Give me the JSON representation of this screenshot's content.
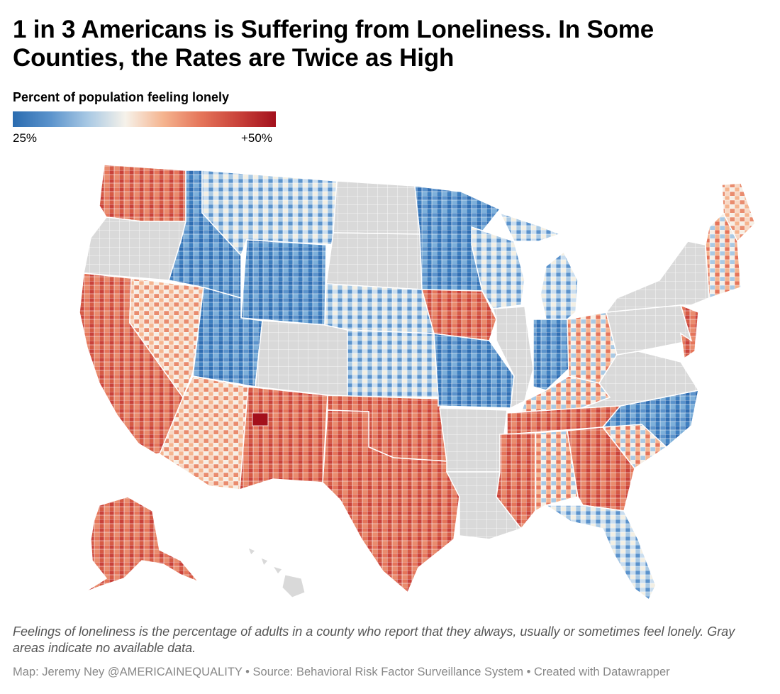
{
  "title": "1 in 3 Americans is Suffering from Loneliness. In Some Counties, the Rates are Twice as High",
  "legend": {
    "title": "Percent of population feeling lonely",
    "min_label": "25%",
    "max_label": "+50%",
    "colors": [
      "#2b6cb0",
      "#5b93cc",
      "#a9c9e4",
      "#f6f2ea",
      "#f5b48f",
      "#e5755a",
      "#c9423a",
      "#a3101c"
    ]
  },
  "no_data_color": "#d9d9d9",
  "note": "Feelings of loneliness is the percentage of adults in a county who report that they always, usually or sometimes feel lonely. Gray areas indicate no available data.",
  "credits": "Map: Jeremy Ney @AMERICAINEQUALITY • Source: Behavioral Risk Factor Surveillance System • Created with Datawrapper"
}
